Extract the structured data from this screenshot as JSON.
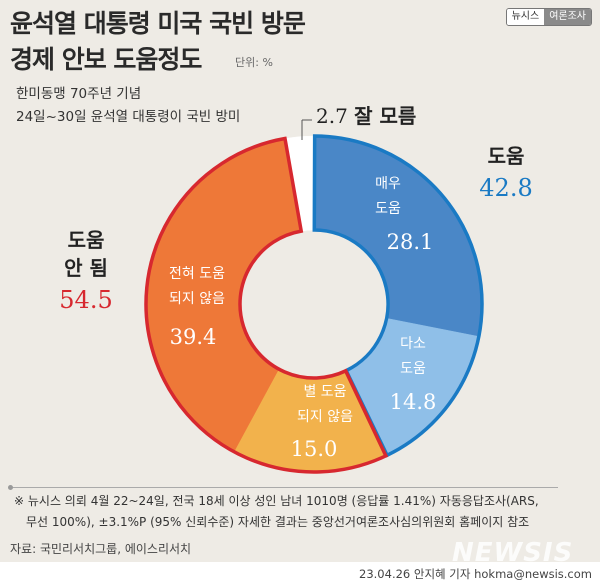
{
  "header": {
    "title_line1": "윤석열 대통령 미국 국빈 방문",
    "title_line2": "경제 안보 도움정도",
    "unit": "단위: %",
    "subtitle_line1": "한미동맹 70주년 기념",
    "subtitle_line2": "24일~30일 윤석열 대통령이 국빈 방미",
    "badge_left": "뉴시스",
    "badge_right": "여론조사"
  },
  "chart_data": {
    "type": "pie",
    "donut": true,
    "slices": [
      {
        "label_line1": "매우",
        "label_line2": "도움",
        "value": 28.1,
        "value_text": "28.1",
        "color": "#4a87c7",
        "group": "help"
      },
      {
        "label_line1": "다소",
        "label_line2": "도움",
        "value": 14.8,
        "value_text": "14.8",
        "color": "#8fbfe8",
        "group": "help"
      },
      {
        "label_line1": "별 도움",
        "label_line2": "되지 않음",
        "value": 15.0,
        "value_text": "15.0",
        "color": "#f2b24c",
        "group": "nohelp"
      },
      {
        "label_line1": "전혀 도움",
        "label_line2": "되지 않음",
        "value": 39.4,
        "value_text": "39.4",
        "color": "#ee7838",
        "group": "nohelp"
      },
      {
        "label": "잘 모름",
        "value": 2.7,
        "value_text": "2.7",
        "color": "#ffffff",
        "group": "unknown"
      }
    ],
    "groups": {
      "help": {
        "label": "도움",
        "value_text": "42.8",
        "color": "#1a7ac4"
      },
      "nohelp": {
        "label_line1": "도움",
        "label_line2": "안 됨",
        "value_text": "54.5",
        "color": "#d7282f"
      }
    }
  },
  "footer": {
    "note_line1": "※ 뉴시스 의뢰 4월 22~24일, 전국 18세 이상 성인 남녀 1010명 (응답률 1.41%) 자동응답조사(ARS,",
    "note_line2": "무선 100%), ±3.1%P (95% 신뢰수준) 자세한 결과는 중앙선거여론조사심의위원회 홈페이지 참조",
    "source": "자료: 국민리서치그룹, 에이스리서치",
    "logo": "NEWSIS",
    "credit": "23.04.26 안지혜 기자 hokma@newsis.com"
  }
}
